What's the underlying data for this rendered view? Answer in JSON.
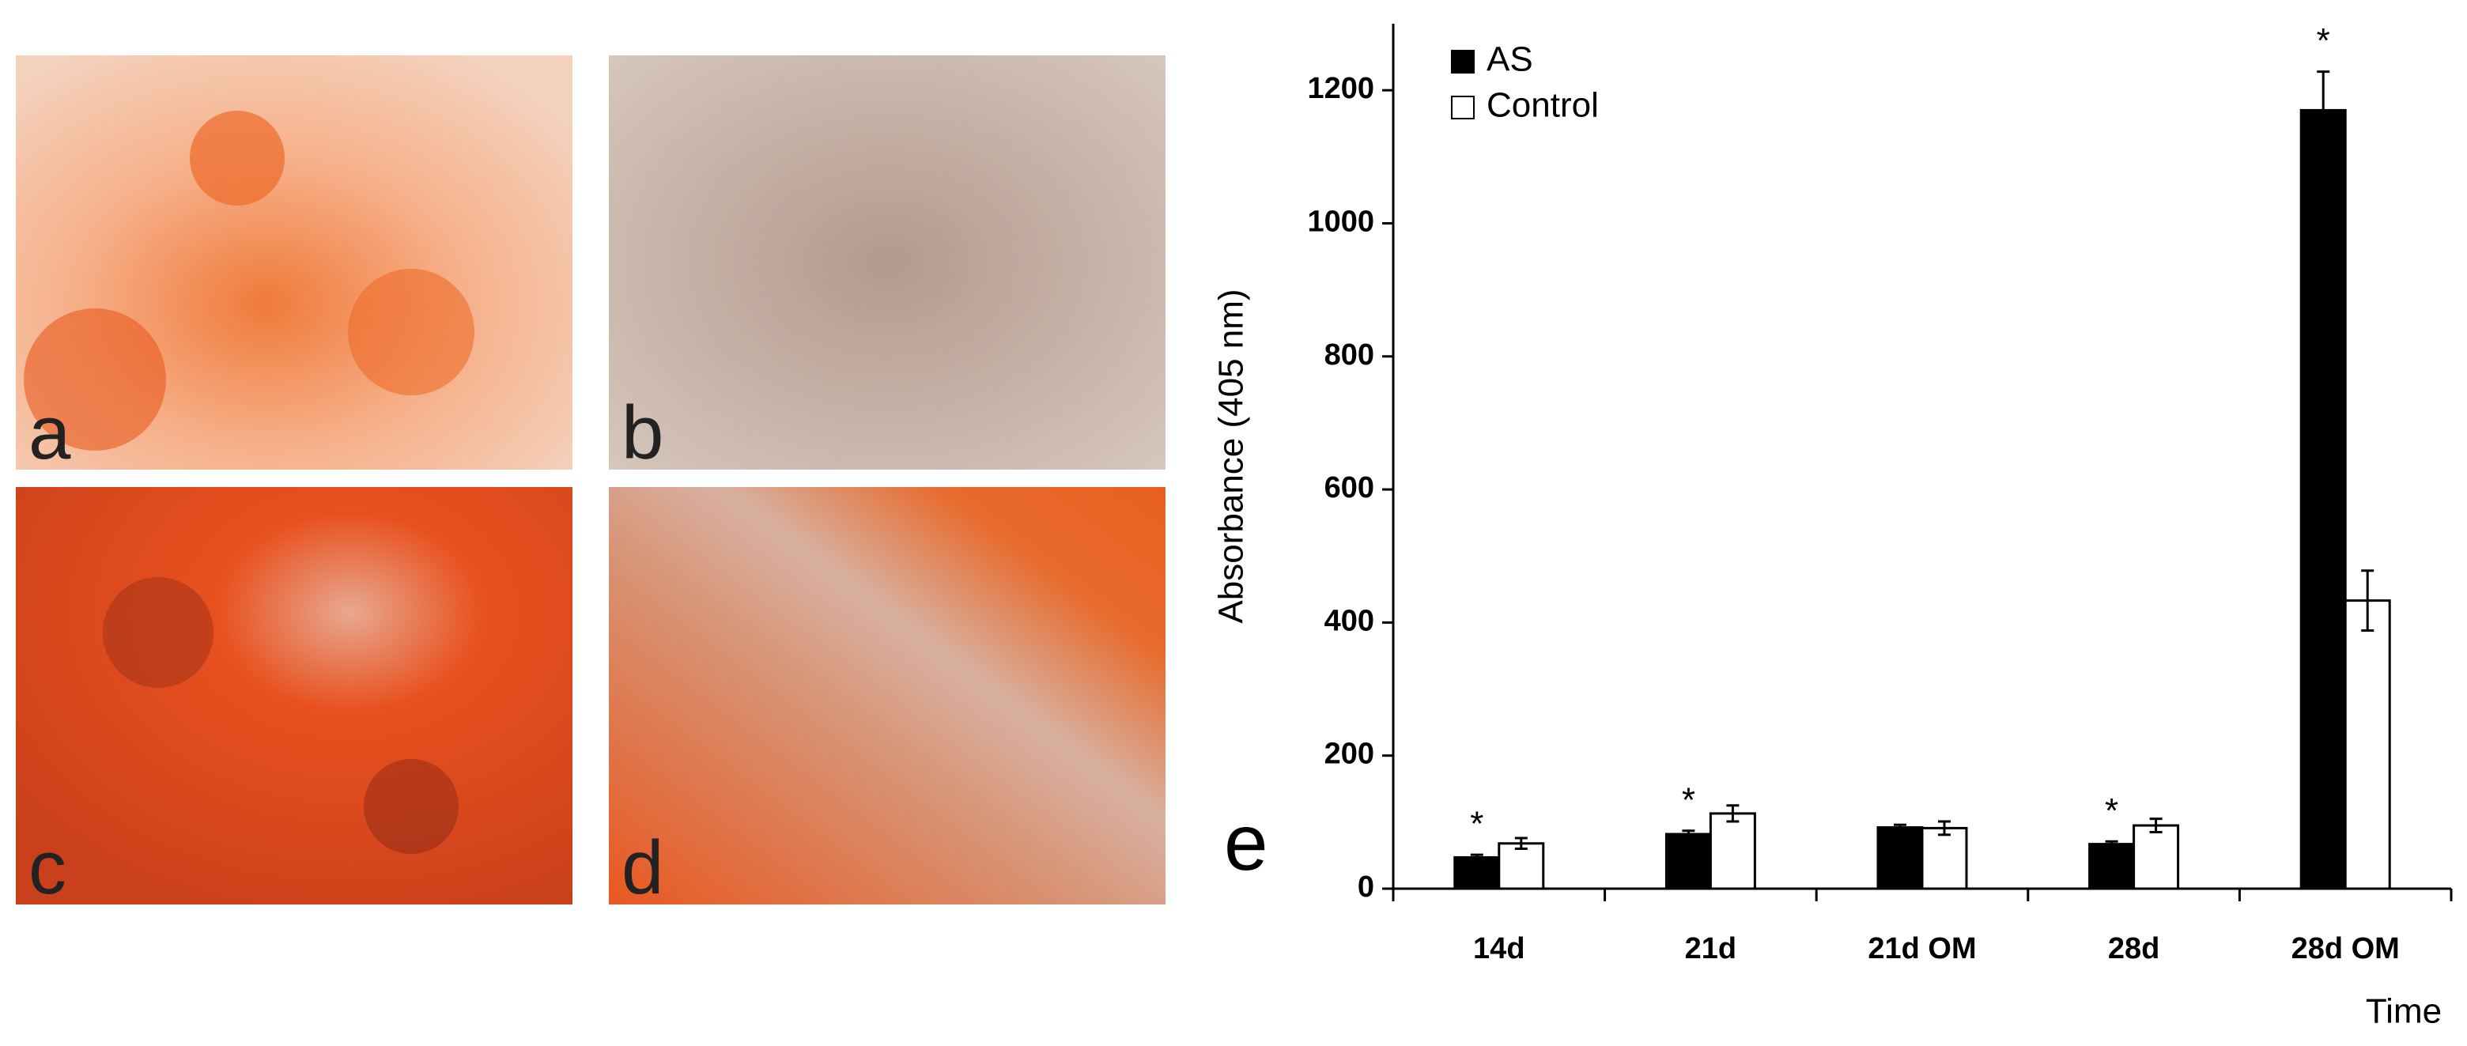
{
  "panels": [
    "a",
    "b",
    "c",
    "d"
  ],
  "chart_data": {
    "type": "bar",
    "panel_label": "e",
    "y_label": "Absorbance (405 nm)",
    "x_label": "Time",
    "categories": [
      "14d",
      "21d",
      "21d OM",
      "28d",
      "28d OM"
    ],
    "series": [
      {
        "name": "AS",
        "color": "#000000",
        "values": [
          47,
          82,
          92,
          67,
          1170
        ],
        "errors": [
          4,
          5,
          4,
          4,
          58
        ]
      },
      {
        "name": "Control",
        "color": "#ffffff",
        "values": [
          68,
          113,
          91,
          95,
          433
        ],
        "errors": [
          8,
          12,
          10,
          10,
          45
        ]
      }
    ],
    "annotations": [
      {
        "text": "*",
        "category": "14d"
      },
      {
        "text": "*",
        "category": "21d"
      },
      {
        "text": "*",
        "category": "28d"
      },
      {
        "text": "*",
        "category": "28d OM"
      }
    ],
    "ylim": [
      0,
      1300
    ],
    "yticks": [
      0,
      200,
      400,
      600,
      800,
      1000,
      1200
    ],
    "legend": "top-left"
  }
}
